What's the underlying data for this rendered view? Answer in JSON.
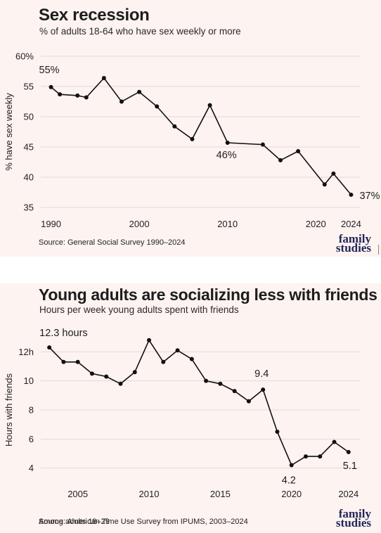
{
  "chart_data": [
    {
      "type": "line",
      "title": "Sex recession",
      "subtitle": "% of adults 18-64 who have sex weekly or more",
      "ylabel": "% have sex weekly",
      "xlabel": "",
      "ylim": [
        35,
        60
      ],
      "xlim": [
        1989,
        2025
      ],
      "y_ticks": [
        "35",
        "40",
        "45",
        "50",
        "55",
        "60%"
      ],
      "y_tick_values": [
        35,
        40,
        45,
        50,
        55,
        60
      ],
      "x_ticks": [
        "1990",
        "2000",
        "2010",
        "2020",
        "2024"
      ],
      "x_tick_values": [
        1990,
        2000,
        2010,
        2020,
        2024
      ],
      "grid": true,
      "series": [
        {
          "x": [
            1990,
            1991,
            1993,
            1994,
            1996,
            1998,
            2000,
            2002,
            2004,
            2006,
            2008,
            2010,
            2014,
            2016,
            2018,
            2021,
            2022,
            2024
          ],
          "values": [
            54.9,
            53.7,
            53.5,
            53.2,
            56.4,
            52.5,
            54.1,
            51.7,
            48.4,
            46.3,
            51.9,
            45.7,
            45.4,
            42.8,
            44.3,
            38.8,
            40.6,
            37.1
          ]
        }
      ],
      "annotations": [
        {
          "text": "55%",
          "x": 1990,
          "y": 54.9
        },
        {
          "text": "46%",
          "x": 2010,
          "y": 45.7
        },
        {
          "text": "37%",
          "x": 2024,
          "y": 37.1
        }
      ],
      "source": "Source: General Social Survey 1990–2024"
    },
    {
      "type": "line",
      "title": "Young adults are socializing less with friends",
      "subtitle": "Hours per week young adults spent with friends",
      "ylabel": "Hours with friends",
      "xlabel": "",
      "ylim": [
        3.5,
        12.5
      ],
      "xlim": [
        2002.5,
        2024.8
      ],
      "y_ticks": [
        "4",
        "6",
        "8",
        "10",
        "12h"
      ],
      "y_tick_values": [
        4,
        6,
        8,
        10,
        12
      ],
      "x_ticks": [
        "2005",
        "2010",
        "2015",
        "2020",
        "2024"
      ],
      "x_tick_values": [
        2005,
        2010,
        2015,
        2020,
        2024
      ],
      "grid": true,
      "series": [
        {
          "x": [
            2003,
            2004,
            2005,
            2006,
            2007,
            2008,
            2009,
            2010,
            2011,
            2012,
            2013,
            2014,
            2015,
            2016,
            2017,
            2018,
            2019,
            2020,
            2021,
            2022,
            2023,
            2024
          ],
          "values": [
            12.3,
            11.3,
            11.3,
            10.5,
            10.3,
            9.8,
            10.6,
            12.8,
            11.3,
            12.1,
            11.5,
            10.0,
            9.8,
            9.3,
            8.6,
            9.4,
            6.5,
            4.2,
            4.8,
            4.8,
            5.8,
            5.1
          ]
        }
      ],
      "annotations": [
        {
          "text": "12.3 hours",
          "x": 2003,
          "y": 12.3
        },
        {
          "text": "9.4",
          "x": 2018,
          "y": 9.4
        },
        {
          "text": "4.2",
          "x": 2020,
          "y": 4.2
        },
        {
          "text": "5.1",
          "x": 2024,
          "y": 5.1
        }
      ],
      "note": "Among adults 18–29",
      "source": "Source: American Time Use Survey from IPUMS, 2003–2024"
    }
  ],
  "logo": {
    "line1": "family",
    "line2": "studies"
  },
  "colors": {
    "background": "#fdf3f1",
    "line": "#111111",
    "logo": "#22265a",
    "grid": "#e3d9d7"
  }
}
